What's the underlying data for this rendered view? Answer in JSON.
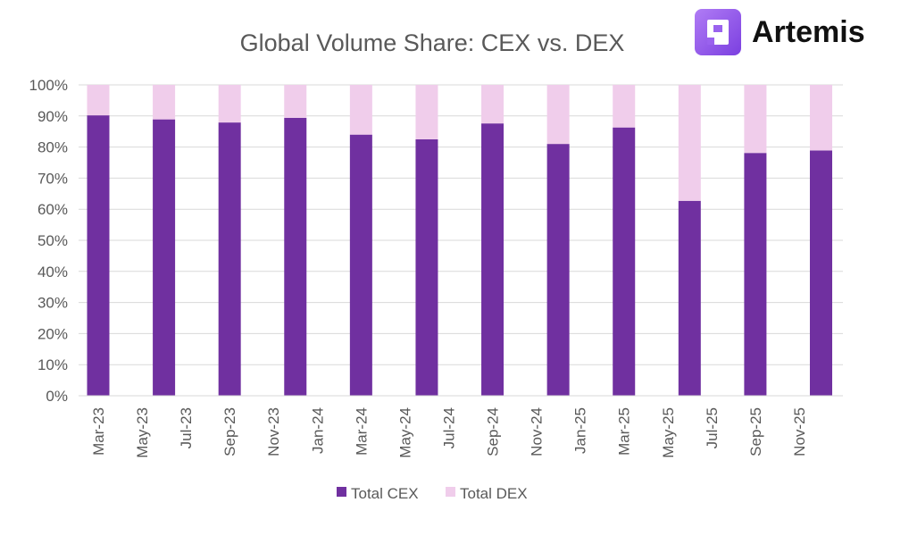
{
  "brand": {
    "name": "Artemis",
    "accent": "#8a4fe8"
  },
  "chart_data": {
    "type": "bar",
    "stacked": true,
    "title": "Global Volume Share: CEX vs. DEX",
    "xlabel": "",
    "ylabel": "",
    "ylim": [
      0,
      100
    ],
    "y_ticks": [
      "0%",
      "10%",
      "20%",
      "30%",
      "40%",
      "50%",
      "60%",
      "70%",
      "80%",
      "90%",
      "100%"
    ],
    "x_tick_labels": [
      "Mar-23",
      "May-23",
      "Jul-23",
      "Sep-23",
      "Nov-23",
      "Jan-24",
      "Mar-24",
      "May-24",
      "Jul-24",
      "Sep-24",
      "Nov-24",
      "Jan-25",
      "Mar-25",
      "May-25",
      "Jul-25",
      "Sep-25",
      "Nov-25"
    ],
    "categories": [
      "Mar-23",
      "Jun-23",
      "Sep-23",
      "Dec-23",
      "Mar-24",
      "Jun-24",
      "Sep-24",
      "Dec-24",
      "Mar-25",
      "Jun-25",
      "Sep-25",
      "Dec-25"
    ],
    "series": [
      {
        "name": "Total CEX",
        "color": "#7030a0",
        "values": [
          90.2,
          88.9,
          87.9,
          89.4,
          84.0,
          82.5,
          87.6,
          81.0,
          86.3,
          62.7,
          78.1,
          78.9
        ]
      },
      {
        "name": "Total DEX",
        "color": "#f0cdeb",
        "values": [
          9.8,
          11.1,
          12.1,
          10.6,
          16.0,
          17.5,
          12.4,
          19.0,
          13.7,
          37.3,
          21.9,
          21.1
        ]
      }
    ],
    "grid": true,
    "legend": "bottom"
  }
}
